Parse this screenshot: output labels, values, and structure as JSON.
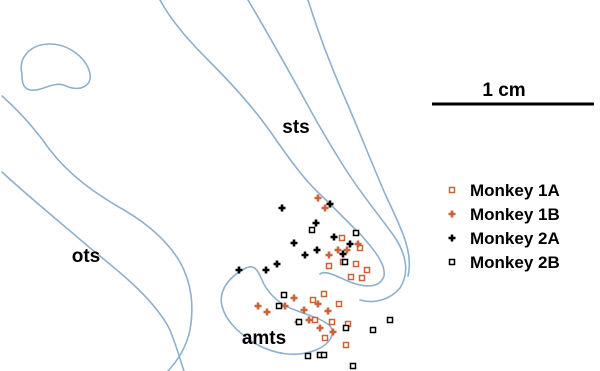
{
  "labels": {
    "sts": "sts",
    "ots": "ots",
    "amts": "amts"
  },
  "scale_bar": {
    "label": "1 cm"
  },
  "colors": {
    "outline": "#8fb0cc",
    "monkey1": "#c8643c",
    "monkey2": "#000000"
  },
  "legend": [
    {
      "name": "Monkey 1A",
      "marker": "open-square",
      "color": "#c8643c"
    },
    {
      "name": "Monkey 1B",
      "marker": "plus",
      "color": "#c8643c"
    },
    {
      "name": "Monkey 2A",
      "marker": "plus",
      "color": "#000000"
    },
    {
      "name": "Monkey 2B",
      "marker": "open-square",
      "color": "#000000"
    }
  ],
  "recording_sites": [
    {
      "subject": "Monkey 1A",
      "points": [
        [
          342,
          238
        ],
        [
          360,
          248
        ],
        [
          329,
          266
        ],
        [
          343,
          262
        ],
        [
          356,
          264
        ],
        [
          367,
          270
        ],
        [
          351,
          277
        ],
        [
          362,
          278
        ],
        [
          313,
          300
        ],
        [
          324,
          294
        ],
        [
          339,
          304
        ],
        [
          315,
          320
        ],
        [
          332,
          322
        ],
        [
          348,
          324
        ],
        [
          325,
          338
        ],
        [
          346,
          345
        ]
      ]
    },
    {
      "subject": "Monkey 1B",
      "points": [
        [
          318,
          198
        ],
        [
          325,
          208
        ],
        [
          338,
          250
        ],
        [
          347,
          250
        ],
        [
          329,
          255
        ],
        [
          358,
          244
        ],
        [
          258,
          306
        ],
        [
          267,
          312
        ],
        [
          285,
          306
        ],
        [
          294,
          298
        ],
        [
          304,
          310
        ],
        [
          298,
          322
        ],
        [
          318,
          304
        ],
        [
          309,
          320
        ],
        [
          328,
          311
        ],
        [
          320,
          328
        ],
        [
          333,
          332
        ]
      ]
    },
    {
      "subject": "Monkey 2A",
      "points": [
        [
          330,
          204
        ],
        [
          282,
          208
        ],
        [
          316,
          223
        ],
        [
          294,
          243
        ],
        [
          334,
          237
        ],
        [
          350,
          244
        ],
        [
          343,
          254
        ],
        [
          317,
          250
        ],
        [
          305,
          255
        ],
        [
          239,
          270
        ],
        [
          266,
          270
        ],
        [
          277,
          264
        ]
      ]
    },
    {
      "subject": "Monkey 2B",
      "points": [
        [
          356,
          233
        ],
        [
          312,
          230
        ],
        [
          345,
          262
        ],
        [
          284,
          295
        ],
        [
          279,
          306
        ],
        [
          299,
          322
        ],
        [
          346,
          328
        ],
        [
          373,
          330
        ],
        [
          390,
          320
        ],
        [
          308,
          356
        ],
        [
          320,
          355
        ],
        [
          324,
          355
        ],
        [
          353,
          366
        ]
      ]
    }
  ]
}
